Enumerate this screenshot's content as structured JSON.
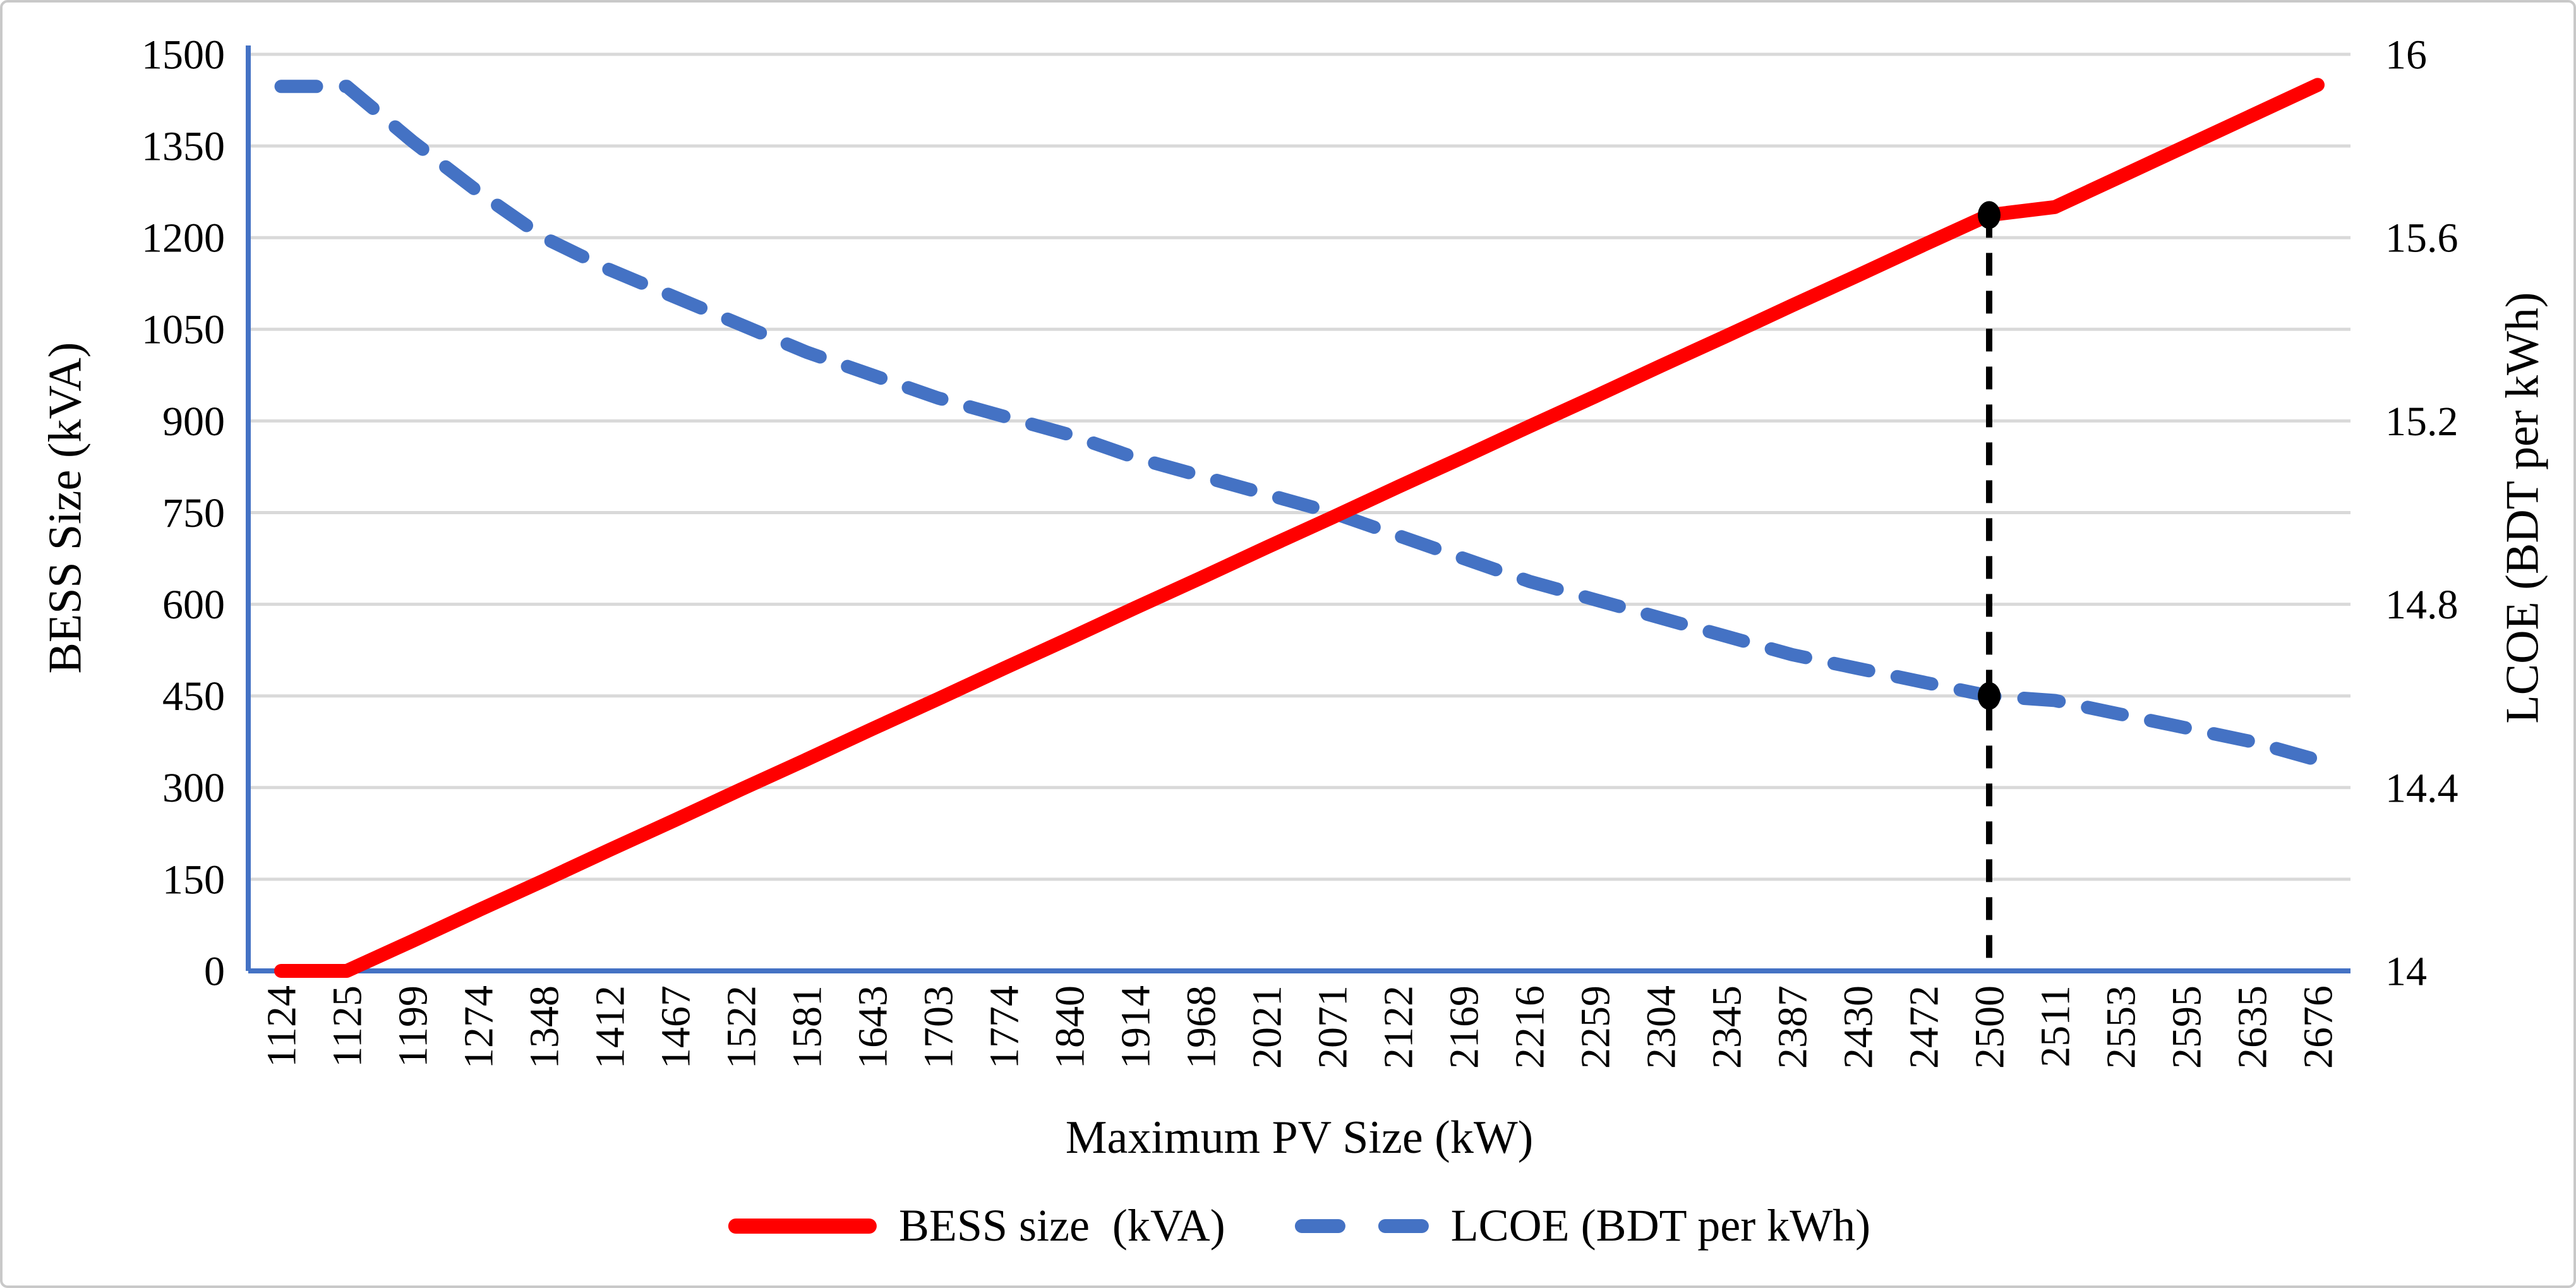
{
  "chart_data": {
    "type": "line",
    "title": "",
    "xlabel": "Maximum PV Size (kW)",
    "ylabel_left": "BESS Size (kVA)",
    "ylabel_right": "LCOE (BDT per kWh)",
    "grid": true,
    "legend_position": "bottom",
    "colors": {
      "bess_line": "#FF0000",
      "lcoe_line": "#4472C4",
      "gridline": "#D9D9D9",
      "axis_line": "#4472C4",
      "annotation": "#000000",
      "text": "#000000"
    },
    "x_categories": [
      "1124",
      "1125",
      "1199",
      "1274",
      "1348",
      "1412",
      "1467",
      "1522",
      "1581",
      "1643",
      "1703",
      "1774",
      "1840",
      "1914",
      "1968",
      "2021",
      "2071",
      "2122",
      "2169",
      "2216",
      "2259",
      "2304",
      "2345",
      "2387",
      "2430",
      "2472",
      "2500",
      "2511",
      "2553",
      "2595",
      "2635",
      "2676"
    ],
    "y_left_axis": {
      "min": 0,
      "max": 1500,
      "tick_labels": [
        "0",
        "150",
        "300",
        "450",
        "600",
        "750",
        "900",
        "1050",
        "1200",
        "1350",
        "1500"
      ],
      "tick_values": [
        0,
        150,
        300,
        450,
        600,
        750,
        900,
        1050,
        1200,
        1350,
        1500
      ]
    },
    "y_right_axis": {
      "min": 14,
      "max": 16,
      "tick_labels": [
        "14",
        "14.4",
        "14.8",
        "15.2",
        "15.6",
        "16"
      ],
      "tick_values": [
        14,
        14.4,
        14.8,
        15.2,
        15.6,
        16
      ]
    },
    "series": [
      {
        "name": "BESS size  (kVA)",
        "axis": "left",
        "style": "solid",
        "color": "#FF0000",
        "values": [
          0,
          0,
          49,
          99,
          148,
          198,
          247,
          297,
          346,
          396,
          445,
          495,
          544,
          594,
          643,
          693,
          742,
          792,
          841,
          891,
          940,
          990,
          1039,
          1089,
          1138,
          1188,
          1237,
          1250,
          1300,
          1350,
          1400,
          1450
        ]
      },
      {
        "name": "LCOE (BDT per kWh)",
        "axis": "right",
        "style": "dashed",
        "color": "#4472C4",
        "values": [
          15.93,
          15.93,
          15.81,
          15.7,
          15.6,
          15.53,
          15.47,
          15.41,
          15.35,
          15.3,
          15.25,
          15.21,
          15.17,
          15.12,
          15.08,
          15.04,
          15.0,
          14.95,
          14.9,
          14.85,
          14.81,
          14.77,
          14.73,
          14.69,
          14.66,
          14.63,
          14.6,
          14.59,
          14.56,
          14.53,
          14.5,
          14.46
        ]
      }
    ],
    "annotation": {
      "x_category": "2500",
      "x_index": 26,
      "style": "dashed-vertical-line",
      "color": "#000000",
      "markers": [
        {
          "series": "BESS size  (kVA)",
          "axis": "left",
          "value": 1237
        },
        {
          "series": "LCOE (BDT per kWh)",
          "axis": "right",
          "value": 14.6
        }
      ]
    }
  }
}
